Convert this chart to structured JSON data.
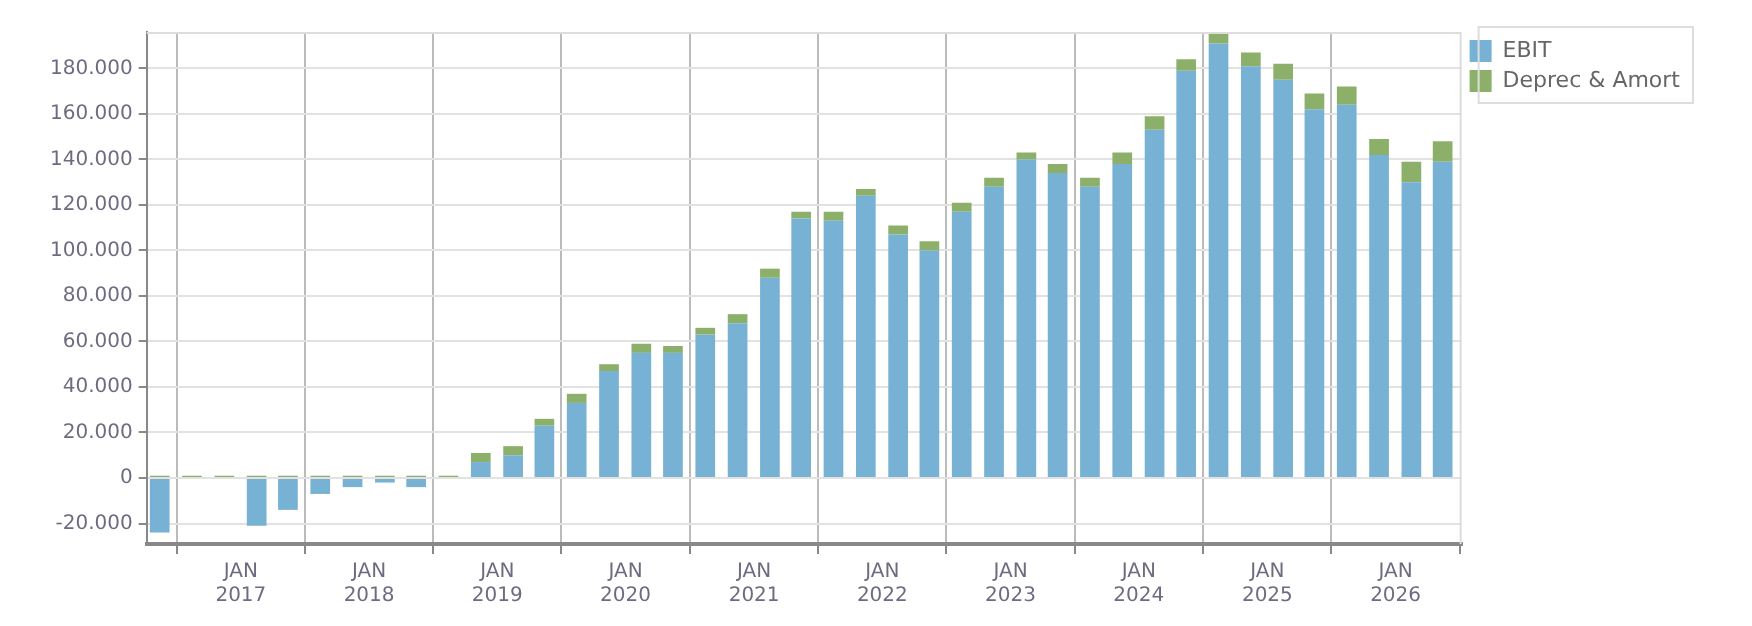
{
  "chart_data": {
    "type": "bar",
    "stacked": true,
    "grid": true,
    "legend": "top right",
    "x": [
      "2016-05-15",
      "2016-08-15",
      "2016-11-15",
      "2017-02-15",
      "2017-05-15",
      "2017-08-15",
      "2017-11-15",
      "2018-02-15",
      "2018-05-15",
      "2018-08-15",
      "2018-11-15",
      "2019-02-15",
      "2019-05-15",
      "2019-08-15",
      "2019-11-15",
      "2020-02-15",
      "2020-05-15",
      "2020-08-15",
      "2020-11-15",
      "2021-02-15",
      "2021-05-15",
      "2021-08-15",
      "2021-11-15",
      "2022-02-15",
      "2022-05-15",
      "2022-08-15",
      "2022-11-15",
      "2023-02-15",
      "2023-05-15",
      "2023-08-15",
      "2023-11-15",
      "2024-02-15",
      "2024-05-15",
      "2024-08-15",
      "2024-11-15",
      "2025-02-15",
      "2025-05-15",
      "2025-08-15",
      "2025-11-15",
      "2026-02-15",
      "2026-05-15"
    ],
    "series": [
      {
        "name": "EBIT",
        "color": "#77b1d4",
        "values": [
          -24000,
          null,
          null,
          -21000,
          -14000,
          -7000,
          -4000,
          -2000,
          -4000,
          0,
          7000,
          10000,
          23000,
          33000,
          47000,
          55000,
          55000,
          63000,
          68000,
          88000,
          114000,
          113000,
          124000,
          107000,
          100000,
          117000,
          128000,
          140000,
          134000,
          128000,
          138000,
          153000,
          179000,
          191000,
          181000,
          175000,
          162000,
          164000,
          142000,
          130000,
          139000
        ]
      },
      {
        "name": "Deprec & Amort",
        "color": "#8cb06a",
        "values": [
          1000,
          1000,
          1000,
          1000,
          1000,
          1000,
          1000,
          1000,
          1000,
          1000,
          4000,
          4000,
          3000,
          4000,
          3000,
          4000,
          3000,
          3000,
          4000,
          4000,
          3000,
          4000,
          3000,
          4000,
          4000,
          4000,
          4000,
          3000,
          4000,
          4000,
          5000,
          6000,
          5000,
          5000,
          6000,
          7000,
          7000,
          8000,
          7000,
          9000,
          9000
        ]
      }
    ],
    "xlim": [
      "2016-04-08",
      "2026-07-08"
    ],
    "xticks": [
      {
        "value": "2017-01-01",
        "label": "JAN 2017"
      },
      {
        "value": "2018-01-01",
        "label": "JAN 2018"
      },
      {
        "value": "2019-01-01",
        "label": "JAN 2019"
      },
      {
        "value": "2020-01-01",
        "label": "JAN 2020"
      },
      {
        "value": "2021-01-01",
        "label": "JAN 2021"
      },
      {
        "value": "2022-01-01",
        "label": "JAN 2022"
      },
      {
        "value": "2023-01-01",
        "label": "JAN 2023"
      },
      {
        "value": "2024-01-01",
        "label": "JAN 2024"
      },
      {
        "value": "2025-01-01",
        "label": "JAN 2025"
      },
      {
        "value": "2026-01-01",
        "label": "JAN 2026"
      }
    ],
    "ylim": [
      -29000,
      196000
    ],
    "yticks": [
      {
        "value": -20000,
        "label": "-20.000"
      },
      {
        "value": 0,
        "label": "0"
      },
      {
        "value": 20000,
        "label": "20.000"
      },
      {
        "value": 40000,
        "label": "40.000"
      },
      {
        "value": 60000,
        "label": "60.000"
      },
      {
        "value": 80000,
        "label": "80.000"
      },
      {
        "value": 100000,
        "label": "100.000"
      },
      {
        "value": 120000,
        "label": "120.000"
      },
      {
        "value": 140000,
        "label": "140.000"
      },
      {
        "value": 160000,
        "label": "160.000"
      },
      {
        "value": 180000,
        "label": "180.000"
      }
    ]
  }
}
